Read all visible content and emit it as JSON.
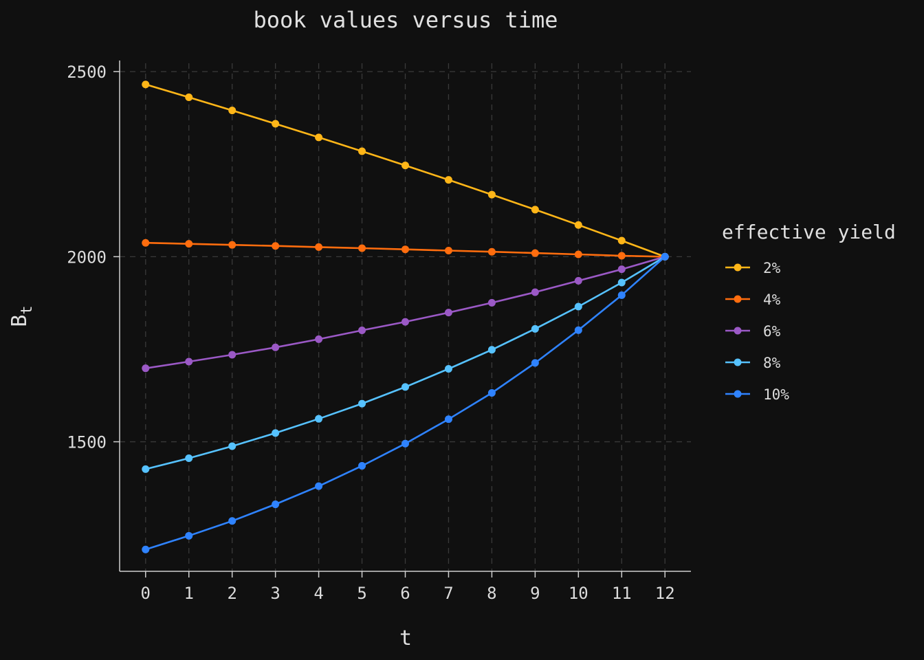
{
  "chart_data": {
    "type": "line",
    "title": "book values versus time",
    "xlabel": "t",
    "ylabel_base": "B",
    "ylabel_sub": "t",
    "x": [
      0,
      1,
      2,
      3,
      4,
      5,
      6,
      7,
      8,
      9,
      10,
      11,
      12
    ],
    "x_ticks": [
      "0",
      "1",
      "2",
      "3",
      "4",
      "5",
      "6",
      "7",
      "8",
      "9",
      "10",
      "11",
      "12"
    ],
    "y_ticks": [
      "1500",
      "2000",
      "2500"
    ],
    "y_tick_values": [
      1500,
      2000,
      2500
    ],
    "xlim": [
      -0.6,
      12.6
    ],
    "ylim": [
      1150,
      2530
    ],
    "grid": true,
    "legend_title": "effective yield",
    "legend_position": "right",
    "series": [
      {
        "name": "2%",
        "color": "#ffb618",
        "values": [
          2465.3,
          2430.6,
          2395.2,
          2359.1,
          2322.3,
          2284.8,
          2246.5,
          2207.5,
          2167.7,
          2127.1,
          2085.7,
          2043.4,
          2000.0
        ]
      },
      {
        "name": "4%",
        "color": "#ff6d0e",
        "values": [
          2037.4,
          2034.7,
          2031.9,
          2029.0,
          2026.0,
          2023.0,
          2019.8,
          2016.5,
          2013.2,
          2009.7,
          2006.2,
          2002.5,
          2000.0
        ]
      },
      {
        "name": "6%",
        "color": "#9b59c6",
        "values": [
          1698.5,
          1716.5,
          1735.0,
          1755.0,
          1777.0,
          1801.0,
          1824.0,
          1849.0,
          1875.5,
          1904.0,
          1935.0,
          1966.0,
          2000.0
        ]
      },
      {
        "name": "8%",
        "color": "#56c2ff",
        "values": [
          1426.0,
          1455.5,
          1488.0,
          1523.5,
          1562.0,
          1603.0,
          1648.0,
          1697.0,
          1748.5,
          1805.0,
          1865.0,
          1930.0,
          2000.0
        ]
      },
      {
        "name": "10%",
        "color": "#2f83ff",
        "values": [
          1209.0,
          1246.0,
          1286.0,
          1331.0,
          1380.0,
          1435.0,
          1495.0,
          1561.0,
          1632.0,
          1713.0,
          1801.5,
          1896.0,
          2000.0
        ]
      }
    ]
  }
}
